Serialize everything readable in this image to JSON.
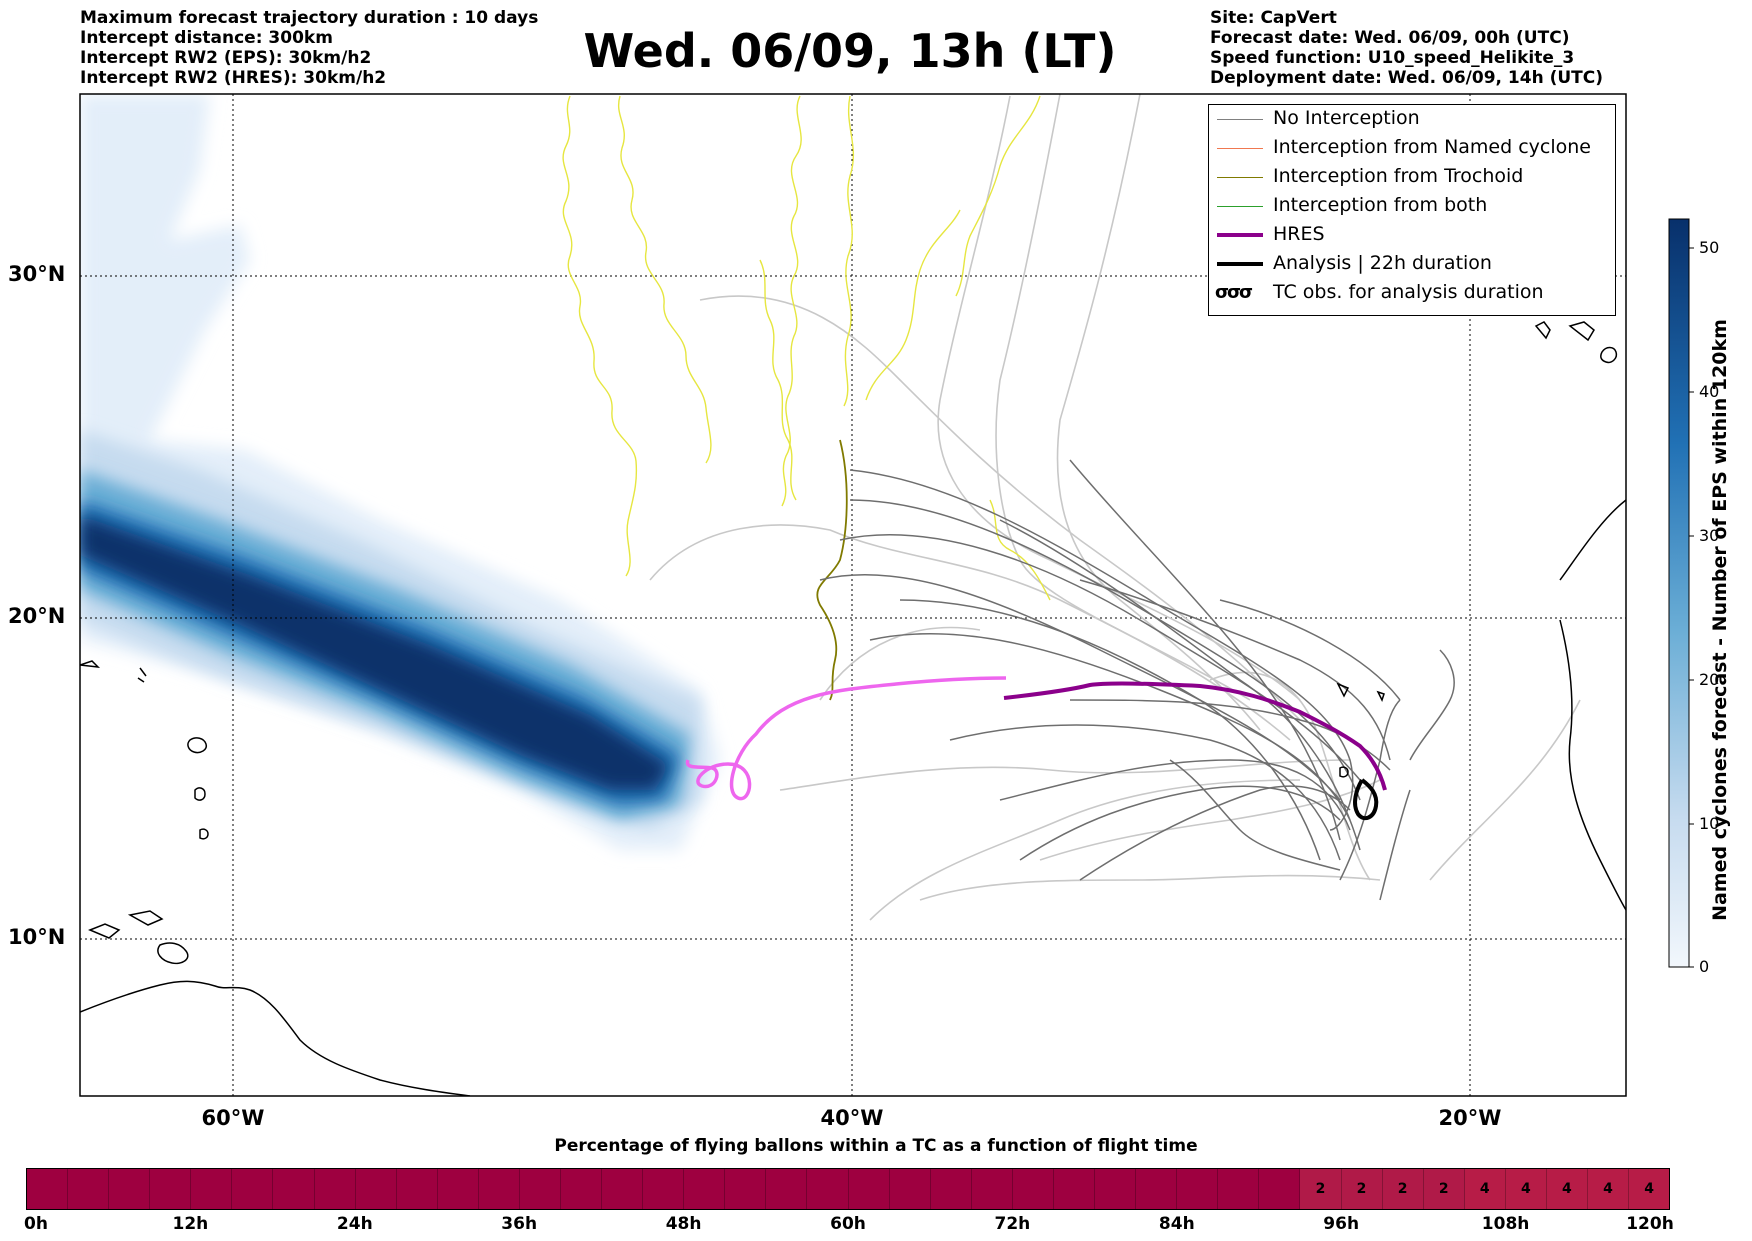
{
  "header_left": {
    "line1": "Maximum forecast trajectory duration : 10 days",
    "line2": "Intercept distance: 300km",
    "line3": "Intercept RW2 (EPS):  30km/h2",
    "line4": "Intercept RW2 (HRES): 30km/h2"
  },
  "title": "Wed. 06/09, 13h (LT)",
  "header_right": {
    "line1": "Site: CapVert",
    "line2": "Forecast date: Wed. 06/09, 00h (UTC)",
    "line3": "Speed function: U10_speed_Helikite_3",
    "line4": "Deployment date: Wed. 06/09, 14h (UTC)"
  },
  "legend": [
    {
      "label": "No Interception",
      "color": "#808080",
      "width": 1.5
    },
    {
      "label": "Interception from Named cyclone",
      "color": "#f07850",
      "width": 1.5
    },
    {
      "label": "Interception from Trochoid",
      "color": "#807a00",
      "width": 1.5
    },
    {
      "label": "Interception from both",
      "color": "#2ca02c",
      "width": 1.5
    },
    {
      "label": "HRES",
      "color": "#8b008b",
      "width": 4
    },
    {
      "label": "Analysis | 22h duration",
      "color": "#000000",
      "width": 4
    },
    {
      "label": "TC obs. for analysis duration",
      "glyph": "σσσ"
    }
  ],
  "map": {
    "lat_labels": [
      "30°N",
      "20°N",
      "10°N"
    ],
    "lon_labels": [
      "60°W",
      "40°W",
      "20°W"
    ]
  },
  "colorbar": {
    "label": "Named cyclones forecast - Number of EPS within 120km",
    "ticks": [
      "50",
      "40",
      "30",
      "20",
      "10",
      "0"
    ],
    "min": 0,
    "max": 52,
    "color_low": "#e8f1fa",
    "color_high": "#08306b"
  },
  "timebar": {
    "title": "Percentage of flying ballons within a TC as a function of flight time",
    "cell_values": [
      "",
      "",
      "",
      "",
      "",
      "",
      "",
      "",
      "",
      "",
      "",
      "",
      "",
      "",
      "",
      "",
      "",
      "",
      "",
      "",
      "",
      "",
      "",
      "",
      "",
      "",
      "",
      "",
      "",
      "",
      "",
      "2",
      "2",
      "2",
      "2",
      "4",
      "4",
      "4",
      "4",
      "4"
    ],
    "tick_labels": [
      "0h",
      "12h",
      "24h",
      "36h",
      "48h",
      "60h",
      "72h",
      "84h",
      "96h",
      "108h",
      "120h"
    ],
    "color_base": "#9e0040",
    "color_low": "#b01a48",
    "color_high": "#b71c47"
  }
}
